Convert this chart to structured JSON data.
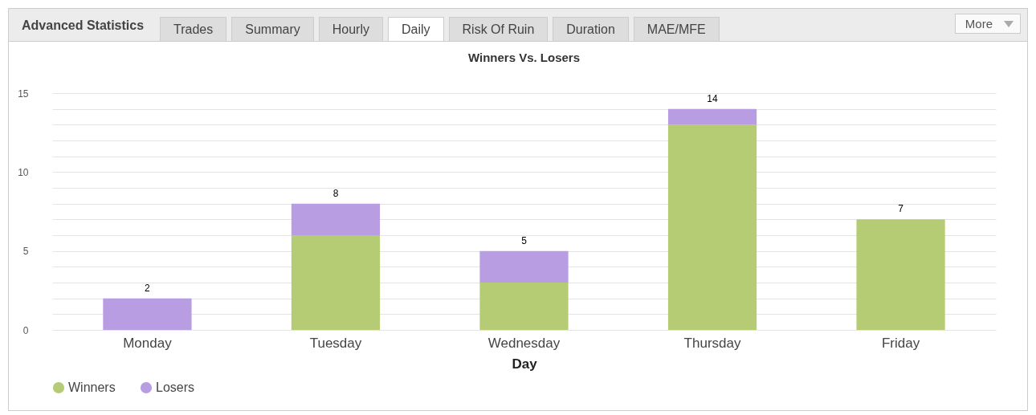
{
  "chart_data": {
    "type": "bar",
    "title": "Winners Vs. Losers",
    "xlabel": "Day",
    "categories": [
      "Monday",
      "Tuesday",
      "Wednesday",
      "Thursday",
      "Friday"
    ],
    "series": [
      {
        "name": "Winners",
        "color": "#b5cc74",
        "values": [
          0,
          6,
          3,
          13,
          7
        ]
      },
      {
        "name": "Losers",
        "color": "#b99de2",
        "values": [
          2,
          2,
          2,
          1,
          0
        ]
      }
    ],
    "stacked": true,
    "totals": [
      "2",
      "8",
      "5",
      "14",
      "7"
    ],
    "ylim": [
      0,
      15
    ],
    "yticks": [
      0,
      {
        "value": 1,
        "label": null
      },
      {
        "value": 2,
        "label": null
      },
      {
        "value": 3,
        "label": null
      },
      {
        "value": 4,
        "label": null
      },
      5,
      {
        "value": 6,
        "label": null
      },
      {
        "value": 7,
        "label": null
      },
      {
        "value": 8,
        "label": null
      },
      {
        "value": 9,
        "label": null
      },
      10,
      {
        "value": 11,
        "label": null
      },
      {
        "value": 12,
        "label": null
      },
      {
        "value": 13,
        "label": null
      },
      {
        "value": 14,
        "label": null
      },
      15
    ],
    "grid": "y",
    "legend": "bottom",
    "annotations": [
      "Advanced Statistics",
      "Trades",
      "Summary",
      "Hourly",
      "Daily",
      "Risk Of Ruin",
      "Duration",
      "MAE/MFE",
      "More"
    ]
  }
}
